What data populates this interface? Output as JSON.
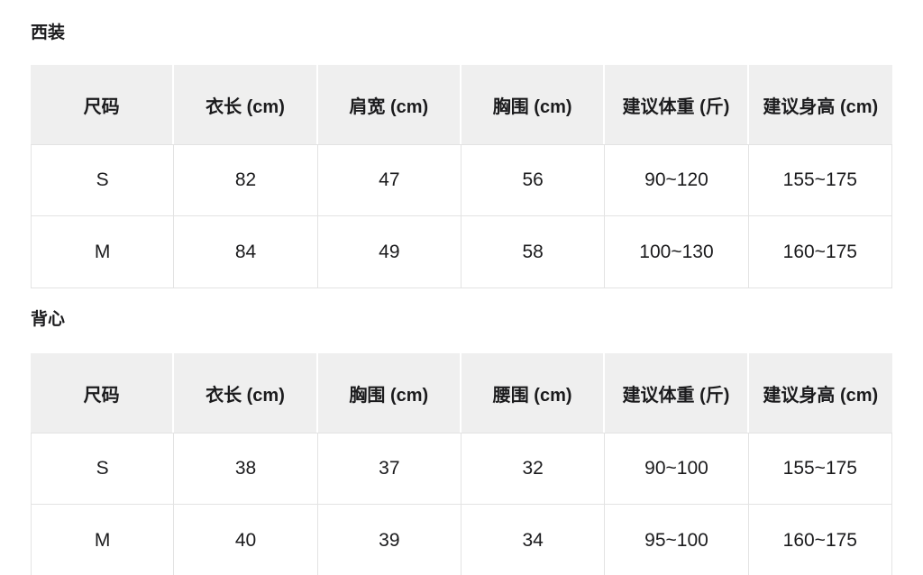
{
  "colors": {
    "page_background": "#ffffff",
    "text": "#1b1b1d",
    "header_background": "#efefef",
    "body_border": "#e3e3e3",
    "header_divider": "#ffffff"
  },
  "tables": [
    {
      "title": "西装",
      "columns": [
        "尺码",
        "衣长 (cm)",
        "肩宽 (cm)",
        "胸围 (cm)",
        "建议体重 (斤)",
        "建议身高 (cm)"
      ],
      "rows": [
        [
          "S",
          "82",
          "47",
          "56",
          "90~120",
          "155~175"
        ],
        [
          "M",
          "84",
          "49",
          "58",
          "100~130",
          "160~175"
        ]
      ]
    },
    {
      "title": "背心",
      "columns": [
        "尺码",
        "衣长 (cm)",
        "胸围 (cm)",
        "腰围 (cm)",
        "建议体重 (斤)",
        "建议身高 (cm)"
      ],
      "rows": [
        [
          "S",
          "38",
          "37",
          "32",
          "90~100",
          "155~175"
        ],
        [
          "M",
          "40",
          "39",
          "34",
          "95~100",
          "160~175"
        ]
      ]
    }
  ]
}
